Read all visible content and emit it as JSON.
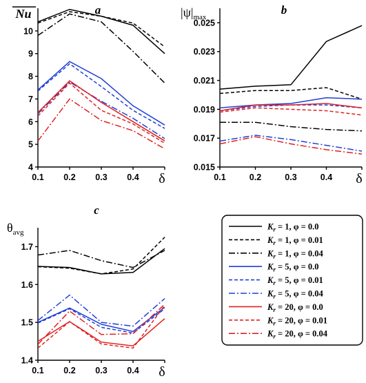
{
  "panels": [
    {
      "id": "a",
      "letter": "a",
      "ylabel": "Nu",
      "ylabel_sub": "",
      "xlabel": "δ",
      "ylim": [
        4,
        11
      ],
      "yticks": [
        4,
        5,
        6,
        7,
        8,
        9,
        10
      ],
      "xticks": [
        0.1,
        0.2,
        0.3,
        0.4
      ],
      "xrange": [
        0.1,
        0.5
      ],
      "series": [
        {
          "x": [
            0.1,
            0.2,
            0.3,
            0.4,
            0.5
          ],
          "y": [
            10.4,
            10.95,
            10.65,
            10.25,
            9.0
          ],
          "color": "#000000",
          "dash": "solid"
        },
        {
          "x": [
            0.1,
            0.2,
            0.3,
            0.4,
            0.5
          ],
          "y": [
            10.35,
            10.85,
            10.65,
            10.35,
            9.3
          ],
          "color": "#000000",
          "dash": "dash"
        },
        {
          "x": [
            0.1,
            0.2,
            0.3,
            0.4,
            0.5
          ],
          "y": [
            9.8,
            10.75,
            10.4,
            9.1,
            7.7
          ],
          "color": "#000000",
          "dash": "dashdot"
        },
        {
          "x": [
            0.1,
            0.2,
            0.3,
            0.4,
            0.5
          ],
          "y": [
            7.4,
            8.65,
            7.9,
            6.7,
            5.85
          ],
          "color": "#1f3fd6",
          "dash": "solid"
        },
        {
          "x": [
            0.1,
            0.2,
            0.3,
            0.4,
            0.5
          ],
          "y": [
            7.35,
            8.55,
            7.55,
            6.5,
            5.7
          ],
          "color": "#1f3fd6",
          "dash": "dash"
        },
        {
          "x": [
            0.1,
            0.2,
            0.3,
            0.4,
            0.5
          ],
          "y": [
            6.35,
            7.75,
            6.9,
            6.15,
            5.25
          ],
          "color": "#1f3fd6",
          "dash": "dashdot"
        },
        {
          "x": [
            0.1,
            0.2,
            0.3,
            0.4,
            0.5
          ],
          "y": [
            6.4,
            7.8,
            6.85,
            6.0,
            5.15
          ],
          "color": "#e02020",
          "dash": "solid"
        },
        {
          "x": [
            0.1,
            0.2,
            0.3,
            0.4,
            0.5
          ],
          "y": [
            6.25,
            7.7,
            6.5,
            5.9,
            5.05
          ],
          "color": "#e02020",
          "dash": "dash"
        },
        {
          "x": [
            0.1,
            0.2,
            0.3,
            0.4,
            0.5
          ],
          "y": [
            5.15,
            7.0,
            6.05,
            5.6,
            4.8
          ],
          "color": "#e02020",
          "dash": "dashdot"
        }
      ]
    },
    {
      "id": "b",
      "letter": "b",
      "ylabel": "|ψ|",
      "ylabel_sub": "max",
      "xlabel": "δ",
      "ylim": [
        0.015,
        0.026
      ],
      "yticks": [
        0.015,
        0.017,
        0.019,
        0.021,
        0.023,
        0.025
      ],
      "yticklabels": [
        "0.015",
        "0.017",
        "0.019",
        "0.021",
        "0.023",
        "0.025"
      ],
      "xticks": [
        0.1,
        0.2,
        0.3,
        0.4
      ],
      "xrange": [
        0.1,
        0.5
      ],
      "series": [
        {
          "x": [
            0.1,
            0.2,
            0.3,
            0.4,
            0.5
          ],
          "y": [
            0.0204,
            0.0206,
            0.0207,
            0.0237,
            0.0248
          ],
          "color": "#000000",
          "dash": "solid"
        },
        {
          "x": [
            0.1,
            0.2,
            0.3,
            0.4,
            0.5
          ],
          "y": [
            0.0201,
            0.0203,
            0.0203,
            0.0205,
            0.0197
          ],
          "color": "#000000",
          "dash": "dash"
        },
        {
          "x": [
            0.1,
            0.2,
            0.3,
            0.4,
            0.5
          ],
          "y": [
            0.0181,
            0.0181,
            0.0178,
            0.0176,
            0.0175
          ],
          "color": "#000000",
          "dash": "dashdot"
        },
        {
          "x": [
            0.1,
            0.2,
            0.3,
            0.4,
            0.5
          ],
          "y": [
            0.0191,
            0.0193,
            0.0194,
            0.0198,
            0.0197
          ],
          "color": "#1f3fd6",
          "dash": "solid"
        },
        {
          "x": [
            0.1,
            0.2,
            0.3,
            0.4,
            0.5
          ],
          "y": [
            0.0189,
            0.0192,
            0.0193,
            0.0193,
            0.0191
          ],
          "color": "#1f3fd6",
          "dash": "dash"
        },
        {
          "x": [
            0.1,
            0.2,
            0.3,
            0.4,
            0.5
          ],
          "y": [
            0.0168,
            0.0172,
            0.0169,
            0.0165,
            0.0161
          ],
          "color": "#1f3fd6",
          "dash": "dashdot"
        },
        {
          "x": [
            0.1,
            0.2,
            0.3,
            0.4,
            0.5
          ],
          "y": [
            0.0189,
            0.0193,
            0.0193,
            0.0194,
            0.0191
          ],
          "color": "#e02020",
          "dash": "solid"
        },
        {
          "x": [
            0.1,
            0.2,
            0.3,
            0.4,
            0.5
          ],
          "y": [
            0.0188,
            0.0191,
            0.019,
            0.0189,
            0.0186
          ],
          "color": "#e02020",
          "dash": "dash"
        },
        {
          "x": [
            0.1,
            0.2,
            0.3,
            0.4,
            0.5
          ],
          "y": [
            0.0166,
            0.0171,
            0.0166,
            0.0162,
            0.0159
          ],
          "color": "#e02020",
          "dash": "dashdot"
        }
      ]
    },
    {
      "id": "c",
      "letter": "c",
      "ylabel": "θ",
      "ylabel_sub": "avg",
      "xlabel": "δ",
      "ylim": [
        1.4,
        1.75
      ],
      "yticks": [
        1.4,
        1.5,
        1.6,
        1.7
      ],
      "xticks": [
        0.1,
        0.2,
        0.3,
        0.4
      ],
      "xrange": [
        0.1,
        0.5
      ],
      "series": [
        {
          "x": [
            0.1,
            0.2,
            0.3,
            0.4,
            0.5
          ],
          "y": [
            1.648,
            1.645,
            1.628,
            1.632,
            1.695
          ],
          "color": "#000000",
          "dash": "solid"
        },
        {
          "x": [
            0.1,
            0.2,
            0.3,
            0.4,
            0.5
          ],
          "y": [
            1.647,
            1.643,
            1.628,
            1.641,
            1.725
          ],
          "color": "#000000",
          "dash": "dash"
        },
        {
          "x": [
            0.1,
            0.2,
            0.3,
            0.4,
            0.5
          ],
          "y": [
            1.678,
            1.69,
            1.663,
            1.645,
            1.69
          ],
          "color": "#000000",
          "dash": "dashdot"
        },
        {
          "x": [
            0.1,
            0.2,
            0.3,
            0.4,
            0.5
          ],
          "y": [
            1.5,
            1.538,
            1.495,
            1.476,
            1.54
          ],
          "color": "#1f3fd6",
          "dash": "solid"
        },
        {
          "x": [
            0.1,
            0.2,
            0.3,
            0.4,
            0.5
          ],
          "y": [
            1.498,
            1.536,
            1.487,
            1.472,
            1.536
          ],
          "color": "#1f3fd6",
          "dash": "dash"
        },
        {
          "x": [
            0.1,
            0.2,
            0.3,
            0.4,
            0.5
          ],
          "y": [
            1.505,
            1.572,
            1.5,
            1.49,
            1.563
          ],
          "color": "#1f3fd6",
          "dash": "dashdot"
        },
        {
          "x": [
            0.1,
            0.2,
            0.3,
            0.4,
            0.5
          ],
          "y": [
            1.45,
            1.502,
            1.448,
            1.438,
            1.51
          ],
          "color": "#e02020",
          "dash": "solid"
        },
        {
          "x": [
            0.1,
            0.2,
            0.3,
            0.4,
            0.5
          ],
          "y": [
            1.432,
            1.502,
            1.443,
            1.432,
            1.545
          ],
          "color": "#e02020",
          "dash": "dash"
        },
        {
          "x": [
            0.1,
            0.2,
            0.3,
            0.4,
            0.5
          ],
          "y": [
            1.442,
            1.53,
            1.468,
            1.47,
            1.548
          ],
          "color": "#e02020",
          "dash": "dashdot"
        }
      ]
    }
  ],
  "legend": {
    "entries": [
      {
        "k": "1",
        "phi": "0.0",
        "color": "#000000",
        "dash": "solid"
      },
      {
        "k": "1",
        "phi": "0.01",
        "color": "#000000",
        "dash": "dash"
      },
      {
        "k": "1",
        "phi": "0.04",
        "color": "#000000",
        "dash": "dashdot"
      },
      {
        "k": "5",
        "phi": "0.0",
        "color": "#1f3fd6",
        "dash": "solid"
      },
      {
        "k": "5",
        "phi": "0.01",
        "color": "#1f3fd6",
        "dash": "dash"
      },
      {
        "k": "5",
        "phi": "0.04",
        "color": "#1f3fd6",
        "dash": "dashdot"
      },
      {
        "k": "20",
        "phi": "0.0",
        "color": "#e02020",
        "dash": "solid"
      },
      {
        "k": "20",
        "phi": "0.01",
        "color": "#e02020",
        "dash": "dash"
      },
      {
        "k": "20",
        "phi": "0.04",
        "color": "#e02020",
        "dash": "dashdot"
      }
    ]
  },
  "chart_data": [
    {
      "type": "line",
      "title": "a",
      "xlabel": "δ",
      "ylabel": "Nu",
      "ylim": [
        4,
        11
      ],
      "x": [
        0.1,
        0.2,
        0.3,
        0.4,
        0.5
      ],
      "series": [
        {
          "name": "K_r = 1, φ = 0.0",
          "values": [
            10.4,
            10.95,
            10.65,
            10.25,
            9.0
          ]
        },
        {
          "name": "K_r = 1, φ = 0.01",
          "values": [
            10.35,
            10.85,
            10.65,
            10.35,
            9.3
          ]
        },
        {
          "name": "K_r = 1, φ = 0.04",
          "values": [
            9.8,
            10.75,
            10.4,
            9.1,
            7.7
          ]
        },
        {
          "name": "K_r = 5, φ = 0.0",
          "values": [
            7.4,
            8.65,
            7.9,
            6.7,
            5.85
          ]
        },
        {
          "name": "K_r = 5, φ = 0.01",
          "values": [
            7.35,
            8.55,
            7.55,
            6.5,
            5.7
          ]
        },
        {
          "name": "K_r = 5, φ = 0.04",
          "values": [
            6.35,
            7.75,
            6.9,
            6.15,
            5.25
          ]
        },
        {
          "name": "K_r = 20, φ = 0.0",
          "values": [
            6.4,
            7.8,
            6.85,
            6.0,
            5.15
          ]
        },
        {
          "name": "K_r = 20, φ = 0.01",
          "values": [
            6.25,
            7.7,
            6.5,
            5.9,
            5.05
          ]
        },
        {
          "name": "K_r = 20, φ = 0.04",
          "values": [
            5.15,
            7.0,
            6.05,
            5.6,
            4.8
          ]
        }
      ]
    },
    {
      "type": "line",
      "title": "b",
      "xlabel": "δ",
      "ylabel": "|ψ|max",
      "ylim": [
        0.015,
        0.026
      ],
      "x": [
        0.1,
        0.2,
        0.3,
        0.4,
        0.5
      ],
      "series": [
        {
          "name": "K_r = 1, φ = 0.0",
          "values": [
            0.0204,
            0.0206,
            0.0207,
            0.0237,
            0.0248
          ]
        },
        {
          "name": "K_r = 1, φ = 0.01",
          "values": [
            0.0201,
            0.0203,
            0.0203,
            0.0205,
            0.0197
          ]
        },
        {
          "name": "K_r = 1, φ = 0.04",
          "values": [
            0.0181,
            0.0181,
            0.0178,
            0.0176,
            0.0175
          ]
        },
        {
          "name": "K_r = 5, φ = 0.0",
          "values": [
            0.0191,
            0.0193,
            0.0194,
            0.0198,
            0.0197
          ]
        },
        {
          "name": "K_r = 5, φ = 0.01",
          "values": [
            0.0189,
            0.0192,
            0.0193,
            0.0193,
            0.0191
          ]
        },
        {
          "name": "K_r = 5, φ = 0.04",
          "values": [
            0.0168,
            0.0172,
            0.0169,
            0.0165,
            0.0161
          ]
        },
        {
          "name": "K_r = 20, φ = 0.0",
          "values": [
            0.0189,
            0.0193,
            0.0193,
            0.0194,
            0.0191
          ]
        },
        {
          "name": "K_r = 20, φ = 0.01",
          "values": [
            0.0188,
            0.0191,
            0.019,
            0.0189,
            0.0186
          ]
        },
        {
          "name": "K_r = 20, φ = 0.04",
          "values": [
            0.0166,
            0.0171,
            0.0166,
            0.0162,
            0.0159
          ]
        }
      ]
    },
    {
      "type": "line",
      "title": "c",
      "xlabel": "δ",
      "ylabel": "θavg",
      "ylim": [
        1.4,
        1.75
      ],
      "x": [
        0.1,
        0.2,
        0.3,
        0.4,
        0.5
      ],
      "series": [
        {
          "name": "K_r = 1, φ = 0.0",
          "values": [
            1.648,
            1.645,
            1.628,
            1.632,
            1.695
          ]
        },
        {
          "name": "K_r = 1, φ = 0.01",
          "values": [
            1.647,
            1.643,
            1.628,
            1.641,
            1.725
          ]
        },
        {
          "name": "K_r = 1, φ = 0.04",
          "values": [
            1.678,
            1.69,
            1.663,
            1.645,
            1.69
          ]
        },
        {
          "name": "K_r = 5, φ = 0.0",
          "values": [
            1.5,
            1.538,
            1.495,
            1.476,
            1.54
          ]
        },
        {
          "name": "K_r = 5, φ = 0.01",
          "values": [
            1.498,
            1.536,
            1.487,
            1.472,
            1.536
          ]
        },
        {
          "name": "K_r = 5, φ = 0.04",
          "values": [
            1.505,
            1.572,
            1.5,
            1.49,
            1.563
          ]
        },
        {
          "name": "K_r = 20, φ = 0.0",
          "values": [
            1.45,
            1.502,
            1.448,
            1.438,
            1.51
          ]
        },
        {
          "name": "K_r = 20, φ = 0.01",
          "values": [
            1.432,
            1.502,
            1.443,
            1.432,
            1.545
          ]
        },
        {
          "name": "K_r = 20, φ = 0.04",
          "values": [
            1.442,
            1.53,
            1.468,
            1.47,
            1.548
          ]
        }
      ]
    }
  ]
}
